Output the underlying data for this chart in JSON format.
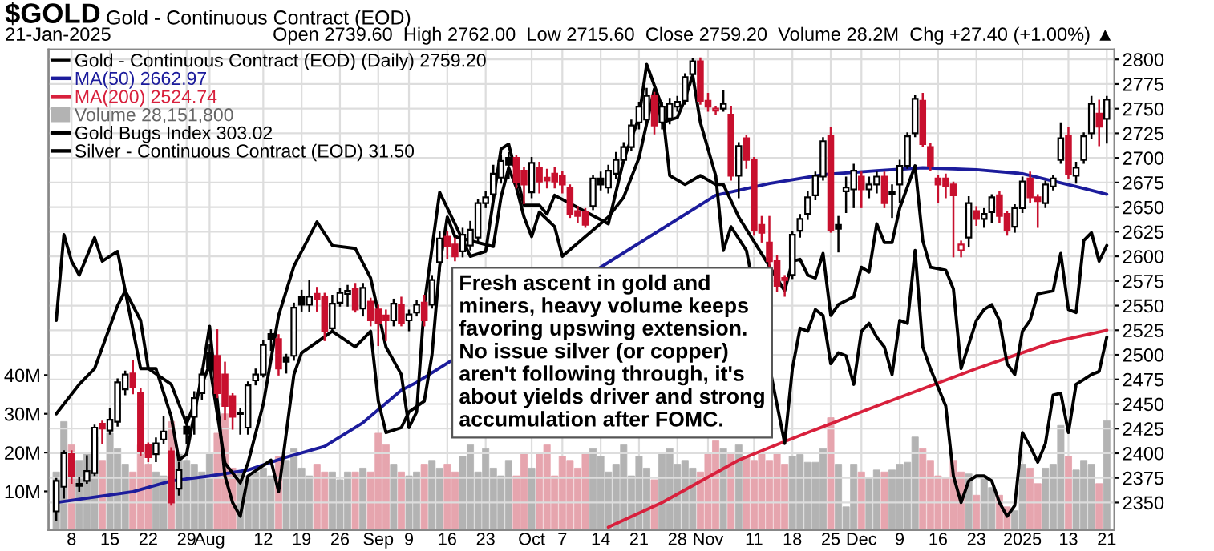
{
  "chart_data": {
    "type": "candlestick",
    "title": "$GOLD",
    "subtitle": "Gold - Continuous Contract (EOD)",
    "annotations": [
      "21-Jan-2025",
      "Open 2739.60  High 2762.00  Low 2715.60  Close 2759.20  Volume 28.2M  Chg +27.40 (+1.00%) ▲",
      "Fresh ascent in gold and\nminers, heavy volume keeps\nfavoring upswing extension.\nNo issue silver (or copper)\naren't following through, it's\nabout yields driver and strong\naccumulation after FOMC."
    ],
    "categories": [
      null,
      null,
      "8",
      null,
      null,
      null,
      null,
      "15",
      null,
      null,
      null,
      null,
      "22",
      null,
      null,
      null,
      null,
      "29",
      null,
      null,
      "Aug",
      null,
      null,
      null,
      null,
      null,
      null,
      "12",
      null,
      null,
      null,
      null,
      "19",
      null,
      null,
      null,
      null,
      "26",
      null,
      null,
      null,
      null,
      "Sep",
      null,
      null,
      null,
      "9",
      null,
      null,
      null,
      null,
      "16",
      null,
      null,
      null,
      null,
      "23",
      null,
      null,
      null,
      null,
      null,
      "Oct",
      null,
      null,
      null,
      "7",
      null,
      null,
      null,
      null,
      "14",
      null,
      null,
      null,
      null,
      "21",
      null,
      null,
      null,
      null,
      "28",
      null,
      null,
      null,
      "Nov",
      null,
      null,
      null,
      null,
      null,
      "11",
      null,
      null,
      null,
      null,
      "18",
      null,
      null,
      null,
      null,
      "25",
      null,
      null,
      null,
      "Dec",
      null,
      null,
      null,
      null,
      "9",
      null,
      null,
      null,
      null,
      "16",
      null,
      null,
      null,
      null,
      "23",
      null,
      null,
      null,
      null,
      null,
      "2025",
      null,
      null,
      null,
      null,
      null,
      "13",
      null,
      null,
      null,
      null,
      "21"
    ],
    "ylim": [
      2322,
      2810
    ],
    "yticks": [
      2350,
      2375,
      2400,
      2425,
      2450,
      2475,
      2500,
      2525,
      2550,
      2575,
      2600,
      2625,
      2650,
      2675,
      2700,
      2725,
      2750,
      2775,
      2800
    ],
    "y2lim": [
      0,
      124
    ],
    "y2ticks": [
      {
        "value": 10,
        "label": "10M"
      },
      {
        "value": 20,
        "label": "20M"
      },
      {
        "value": 30,
        "label": "30M"
      },
      {
        "value": 40,
        "label": "40M"
      }
    ],
    "grid": true,
    "legend": "top left",
    "series": [
      {
        "name": "Gold - Continuous Contract (EOD) (Daily) 2759.20",
        "color": "#000000",
        "ohlc": [
          [
            2341,
            2374,
            2332,
            2372
          ],
          [
            2366,
            2402,
            2355,
            2400
          ],
          [
            2399,
            2402,
            2370,
            2377
          ],
          [
            2369,
            2375,
            2362,
            2367
          ],
          [
            2372,
            2397,
            2370,
            2382
          ],
          [
            2380,
            2428,
            2378,
            2426
          ],
          [
            2430,
            2432,
            2410,
            2425
          ],
          [
            2423,
            2445,
            2420,
            2434
          ],
          [
            2432,
            2475,
            2428,
            2472
          ],
          [
            2465,
            2483,
            2460,
            2480
          ],
          [
            2481,
            2494,
            2461,
            2467
          ],
          [
            2461,
            2465,
            2398,
            2402
          ],
          [
            2408,
            2410,
            2392,
            2396
          ],
          [
            2399,
            2415,
            2392,
            2410
          ],
          [
            2414,
            2437,
            2410,
            2422
          ],
          [
            2402,
            2405,
            2348,
            2350
          ],
          [
            2364,
            2390,
            2358,
            2383
          ],
          [
            2427,
            2437,
            2410,
            2420
          ],
          [
            2437,
            2462,
            2420,
            2456
          ],
          [
            2461,
            2485,
            2455,
            2480
          ],
          [
            2502,
            2510,
            2485,
            2488
          ],
          [
            2499,
            2525,
            2457,
            2461
          ],
          [
            2480,
            2492,
            2435,
            2448
          ],
          [
            2458,
            2460,
            2425,
            2437
          ],
          [
            2441,
            2445,
            2420,
            2440
          ],
          [
            2426,
            2472,
            2420,
            2469
          ],
          [
            2474,
            2485,
            2470,
            2480
          ],
          [
            2480,
            2514,
            2478,
            2510
          ],
          [
            2521,
            2525,
            2505,
            2516
          ],
          [
            2516,
            2520,
            2480,
            2486
          ],
          [
            2497,
            2500,
            2482,
            2493
          ],
          [
            2499,
            2552,
            2495,
            2548
          ],
          [
            2559,
            2565,
            2545,
            2551
          ],
          [
            2551,
            2575,
            2545,
            2559
          ],
          [
            2562,
            2568,
            2545,
            2557
          ],
          [
            2559,
            2562,
            2515,
            2524
          ],
          [
            2527,
            2560,
            2525,
            2552
          ],
          [
            2553,
            2567,
            2550,
            2563
          ],
          [
            2562,
            2570,
            2550,
            2565
          ],
          [
            2567,
            2572,
            2544,
            2546
          ],
          [
            2547,
            2572,
            2540,
            2568
          ],
          [
            2554,
            2557,
            2530,
            2535
          ],
          [
            2546,
            2550,
            2510,
            2532
          ],
          [
            2540,
            2545,
            2515,
            2535
          ],
          [
            2535,
            2556,
            2530,
            2552
          ],
          [
            2551,
            2558,
            2530,
            2532
          ],
          [
            2535,
            2545,
            2525,
            2541
          ],
          [
            2543,
            2555,
            2540,
            2551
          ],
          [
            2553,
            2560,
            2530,
            2535
          ],
          [
            2551,
            2580,
            2548,
            2576
          ],
          [
            2594,
            2625,
            2585,
            2618
          ],
          [
            2620,
            2625,
            2598,
            2610
          ],
          [
            2612,
            2618,
            2596,
            2600
          ],
          [
            2605,
            2628,
            2600,
            2622
          ],
          [
            2611,
            2635,
            2607,
            2627
          ],
          [
            2619,
            2657,
            2615,
            2654
          ],
          [
            2654,
            2665,
            2650,
            2660
          ],
          [
            2663,
            2692,
            2660,
            2684
          ],
          [
            2680,
            2702,
            2675,
            2697
          ],
          [
            2700,
            2705,
            2680,
            2693
          ],
          [
            2700,
            2702,
            2670,
            2675
          ],
          [
            2687,
            2690,
            2654,
            2673
          ],
          [
            2665,
            2700,
            2660,
            2695
          ],
          [
            2690,
            2695,
            2665,
            2676
          ],
          [
            2680,
            2688,
            2670,
            2677
          ],
          [
            2684,
            2690,
            2670,
            2676
          ],
          [
            2682,
            2686,
            2665,
            2673
          ],
          [
            2670,
            2672,
            2640,
            2643
          ],
          [
            2646,
            2650,
            2635,
            2641
          ],
          [
            2645,
            2648,
            2630,
            2632
          ],
          [
            2651,
            2682,
            2648,
            2679
          ],
          [
            2679,
            2685,
            2668,
            2673
          ],
          [
            2670,
            2692,
            2665,
            2687
          ],
          [
            2684,
            2705,
            2680,
            2698
          ],
          [
            2698,
            2715,
            2695,
            2711
          ],
          [
            2711,
            2738,
            2708,
            2733
          ],
          [
            2736,
            2756,
            2730,
            2752
          ],
          [
            2739,
            2770,
            2735,
            2763
          ],
          [
            2763,
            2766,
            2725,
            2733
          ],
          [
            2736,
            2756,
            2730,
            2752
          ],
          [
            2740,
            2760,
            2735,
            2755
          ],
          [
            2752,
            2762,
            2748,
            2757
          ],
          [
            2758,
            2785,
            2755,
            2782
          ],
          [
            2785,
            2800,
            2780,
            2798
          ],
          [
            2798,
            2801,
            2755,
            2758
          ],
          [
            2758,
            2765,
            2748,
            2752
          ],
          [
            2748,
            2752,
            2745,
            2750
          ],
          [
            2750,
            2768,
            2748,
            2755
          ],
          [
            2744,
            2752,
            2678,
            2682
          ],
          [
            2682,
            2715,
            2660,
            2712
          ],
          [
            2720,
            2722,
            2690,
            2698
          ],
          [
            2698,
            2700,
            2622,
            2627
          ],
          [
            2632,
            2640,
            2615,
            2624
          ],
          [
            2614,
            2640,
            2590,
            2595
          ],
          [
            2595,
            2600,
            2565,
            2570
          ],
          [
            2578,
            2580,
            2560,
            2576
          ],
          [
            2581,
            2625,
            2578,
            2622
          ],
          [
            2626,
            2642,
            2620,
            2638
          ],
          [
            2643,
            2665,
            2638,
            2660
          ],
          [
            2662,
            2685,
            2658,
            2682
          ],
          [
            2681,
            2720,
            2678,
            2717
          ],
          [
            2722,
            2730,
            2625,
            2627
          ],
          [
            2632,
            2640,
            2605,
            2628
          ],
          [
            2666,
            2680,
            2645,
            2670
          ],
          [
            2668,
            2693,
            2650,
            2687
          ],
          [
            2681,
            2685,
            2650,
            2668
          ],
          [
            2668,
            2680,
            2660,
            2673
          ],
          [
            2673,
            2685,
            2665,
            2681
          ],
          [
            2681,
            2685,
            2650,
            2654
          ],
          [
            2665,
            2672,
            2640,
            2663
          ],
          [
            2673,
            2697,
            2655,
            2692
          ],
          [
            2692,
            2725,
            2690,
            2722
          ],
          [
            2725,
            2763,
            2722,
            2760
          ],
          [
            2758,
            2765,
            2712,
            2714
          ],
          [
            2711,
            2714,
            2688,
            2692
          ],
          [
            2679,
            2682,
            2655,
            2673
          ],
          [
            2679,
            2683,
            2660,
            2671
          ],
          [
            2673,
            2675,
            2600,
            2662
          ],
          [
            2606,
            2615,
            2600,
            2612
          ],
          [
            2619,
            2660,
            2610,
            2654
          ],
          [
            2646,
            2650,
            2632,
            2638
          ],
          [
            2638,
            2648,
            2630,
            2643
          ],
          [
            2645,
            2662,
            2635,
            2660
          ],
          [
            2662,
            2665,
            2635,
            2641
          ],
          [
            2643,
            2645,
            2622,
            2627
          ],
          [
            2630,
            2652,
            2625,
            2649
          ],
          [
            2649,
            2680,
            2645,
            2676
          ],
          [
            2679,
            2685,
            2655,
            2660
          ],
          [
            2660,
            2662,
            2630,
            2656
          ],
          [
            2654,
            2676,
            2650,
            2673
          ],
          [
            2671,
            2682,
            2668,
            2679
          ],
          [
            2698,
            2735,
            2695,
            2720
          ],
          [
            2722,
            2730,
            2680,
            2684
          ],
          [
            2682,
            2695,
            2675,
            2690
          ],
          [
            2698,
            2725,
            2695,
            2722
          ],
          [
            2725,
            2762,
            2720,
            2755
          ],
          [
            2745,
            2758,
            2713,
            2731.8
          ],
          [
            2739.6,
            2762,
            2715.6,
            2759.2
          ]
        ],
        "colors": [
          "#000000",
          "#000000",
          "#c8102e",
          "#000000",
          "#000000",
          "#000000",
          "#c8102e",
          "#000000",
          "#000000",
          "#000000",
          "#c8102e",
          "#c8102e",
          "#c8102e",
          "#000000",
          "#000000",
          "#c8102e",
          "#000000",
          "#000000",
          "#000000",
          "#000000",
          "#000000",
          "#c8102e",
          "#c8102e",
          "#c8102e",
          "#000000",
          "#000000",
          "#000000",
          "#000000",
          "#000000",
          "#c8102e",
          "#000000",
          "#000000",
          "#000000",
          "#000000",
          "#c8102e",
          "#c8102e",
          "#000000",
          "#000000",
          "#000000",
          "#c8102e",
          "#000000",
          "#c8102e",
          "#c8102e",
          "#c8102e",
          "#000000",
          "#c8102e",
          "#000000",
          "#000000",
          "#c8102e",
          "#000000",
          "#000000",
          "#c8102e",
          "#c8102e",
          "#000000",
          "#000000",
          "#000000",
          "#000000",
          "#000000",
          "#000000",
          "#000000",
          "#c8102e",
          "#c8102e",
          "#000000",
          "#c8102e",
          "#c8102e",
          "#c8102e",
          "#c8102e",
          "#c8102e",
          "#c8102e",
          "#c8102e",
          "#000000",
          "#000000",
          "#000000",
          "#000000",
          "#000000",
          "#000000",
          "#000000",
          "#000000",
          "#c8102e",
          "#000000",
          "#000000",
          "#000000",
          "#000000",
          "#000000",
          "#c8102e",
          "#c8102e",
          "#c8102e",
          "#000000",
          "#c8102e",
          "#000000",
          "#c8102e",
          "#c8102e",
          "#c8102e",
          "#c8102e",
          "#c8102e",
          "#c8102e",
          "#000000",
          "#000000",
          "#000000",
          "#000000",
          "#000000",
          "#c8102e",
          "#000000",
          "#000000",
          "#000000",
          "#c8102e",
          "#000000",
          "#000000",
          "#c8102e",
          "#000000",
          "#000000",
          "#000000",
          "#000000",
          "#c8102e",
          "#c8102e",
          "#c8102e",
          "#c8102e",
          "#c8102e",
          "#c8102e",
          "#000000",
          "#c8102e",
          "#000000",
          "#000000",
          "#c8102e",
          "#c8102e",
          "#000000",
          "#000000",
          "#c8102e",
          "#c8102e",
          "#000000",
          "#000000",
          "#000000",
          "#c8102e",
          "#000000",
          "#000000",
          "#000000",
          "#c8102e",
          "#000000"
        ]
      },
      {
        "type": "line",
        "name": "MA(50) 2662.97",
        "color": "#1c1c9c",
        "values": [
          2350,
          null,
          null,
          null,
          null,
          null,
          null,
          null,
          null,
          null,
          2361,
          null,
          null,
          null,
          null,
          2372,
          null,
          null,
          null,
          null,
          2377,
          null,
          null,
          null,
          null,
          2383,
          null,
          null,
          null,
          null,
          2396,
          null,
          null,
          null,
          null,
          2407,
          null,
          null,
          null,
          null,
          2431,
          null,
          null,
          null,
          null,
          2464,
          null,
          2472,
          null,
          null,
          null,
          null,
          null,
          null,
          null,
          null,
          null,
          null,
          null,
          null,
          null,
          null,
          null,
          null,
          null,
          null,
          null,
          null,
          null,
          null,
          null,
          null,
          null,
          null,
          null,
          null,
          null,
          null,
          null,
          null,
          null,
          null,
          null,
          null,
          null,
          null,
          2662,
          null,
          null,
          null,
          null,
          null,
          null,
          2674,
          null,
          null,
          null,
          null,
          null,
          null,
          2683,
          null,
          null,
          null,
          null,
          null,
          null,
          2687,
          null,
          null,
          null,
          null,
          null,
          2690,
          null,
          null,
          null,
          null,
          null,
          null,
          2688,
          null,
          null,
          null,
          null,
          null,
          2684,
          null,
          null,
          null,
          null,
          null,
          null,
          2671,
          null,
          null,
          null,
          2663
        ]
      },
      {
        "type": "line",
        "name": "MA(200) 2524.74",
        "color": "#d8203c",
        "values": [
          null,
          null,
          null,
          null,
          null,
          null,
          null,
          null,
          null,
          null,
          null,
          null,
          null,
          null,
          null,
          null,
          null,
          null,
          null,
          null,
          null,
          null,
          null,
          null,
          null,
          null,
          null,
          null,
          null,
          null,
          null,
          null,
          null,
          null,
          null,
          null,
          null,
          null,
          null,
          null,
          null,
          null,
          null,
          null,
          null,
          null,
          null,
          null,
          null,
          null,
          null,
          null,
          null,
          null,
          null,
          null,
          null,
          null,
          null,
          null,
          null,
          null,
          null,
          null,
          null,
          null,
          null,
          null,
          null,
          null,
          null,
          null,
          2325,
          null,
          null,
          null,
          null,
          null,
          null,
          2350,
          null,
          null,
          null,
          null,
          null,
          null,
          null,
          null,
          null,
          2393,
          null,
          null,
          null,
          null,
          null,
          2412,
          null,
          null,
          null,
          null,
          null,
          null,
          null,
          null,
          null,
          null,
          null,
          2448,
          null,
          null,
          null,
          null,
          null,
          null,
          null,
          null,
          null,
          null,
          null,
          null,
          2486,
          null,
          null,
          null,
          null,
          null,
          null,
          null,
          null,
          null,
          2513,
          null,
          null,
          null,
          null,
          null,
          null,
          2525
        ]
      },
      {
        "type": "bar",
        "axis": "y2",
        "name": "Volume 28,151,800",
        "color": "#b3b3b3",
        "values": [
          15,
          28,
          22,
          18,
          20,
          24,
          18,
          25,
          21,
          17,
          15,
          22,
          17,
          15,
          14,
          28,
          20,
          18,
          17,
          15,
          20,
          25,
          30,
          16,
          15,
          14,
          15,
          16,
          14,
          19,
          18,
          21,
          16,
          14,
          17,
          15,
          15,
          13,
          15,
          15,
          16,
          15,
          25,
          22,
          17,
          15,
          14,
          15,
          17,
          18,
          16,
          17,
          15,
          19,
          22,
          15,
          21,
          16,
          14,
          18,
          14,
          20,
          16,
          20,
          22,
          14,
          19,
          18,
          16,
          20,
          21,
          19,
          15,
          17,
          22,
          14,
          19,
          16,
          13,
          20,
          21,
          17,
          18,
          16,
          15,
          20,
          23,
          21,
          20,
          22,
          19,
          18,
          20,
          18,
          20,
          17,
          19,
          19.5,
          17.5,
          17.5,
          21,
          29,
          17,
          6,
          17,
          15,
          13.5,
          15.5,
          15,
          15.5,
          17,
          17.5,
          24,
          21,
          18,
          14,
          13.5,
          18,
          15,
          14.5,
          9,
          14,
          11,
          9,
          6,
          5,
          17,
          16,
          12,
          16,
          17,
          27,
          19,
          15.5,
          18,
          17,
          12,
          28.2
        ],
        "colors": [
          "#b3b3b3",
          "#b3b3b3",
          "#e6a5ae",
          "#b3b3b3",
          "#b3b3b3",
          "#b3b3b3",
          "#e6a5ae",
          "#b3b3b3",
          "#b3b3b3",
          "#b3b3b3",
          "#e6a5ae",
          "#e6a5ae",
          "#e6a5ae",
          "#b3b3b3",
          "#b3b3b3",
          "#e6a5ae",
          "#b3b3b3",
          "#b3b3b3",
          "#b3b3b3",
          "#b3b3b3",
          "#b3b3b3",
          "#e6a5ae",
          "#e6a5ae",
          "#e6a5ae",
          "#b3b3b3",
          "#b3b3b3",
          "#b3b3b3",
          "#b3b3b3",
          "#b3b3b3",
          "#e6a5ae",
          "#b3b3b3",
          "#b3b3b3",
          "#b3b3b3",
          "#b3b3b3",
          "#e6a5ae",
          "#e6a5ae",
          "#b3b3b3",
          "#b3b3b3",
          "#b3b3b3",
          "#e6a5ae",
          "#b3b3b3",
          "#e6a5ae",
          "#e6a5ae",
          "#e6a5ae",
          "#b3b3b3",
          "#e6a5ae",
          "#b3b3b3",
          "#b3b3b3",
          "#e6a5ae",
          "#b3b3b3",
          "#b3b3b3",
          "#e6a5ae",
          "#e6a5ae",
          "#b3b3b3",
          "#b3b3b3",
          "#b3b3b3",
          "#b3b3b3",
          "#b3b3b3",
          "#b3b3b3",
          "#b3b3b3",
          "#e6a5ae",
          "#e6a5ae",
          "#b3b3b3",
          "#e6a5ae",
          "#e6a5ae",
          "#e6a5ae",
          "#e6a5ae",
          "#e6a5ae",
          "#e6a5ae",
          "#e6a5ae",
          "#b3b3b3",
          "#b3b3b3",
          "#b3b3b3",
          "#b3b3b3",
          "#b3b3b3",
          "#b3b3b3",
          "#b3b3b3",
          "#b3b3b3",
          "#e6a5ae",
          "#b3b3b3",
          "#b3b3b3",
          "#b3b3b3",
          "#b3b3b3",
          "#b3b3b3",
          "#e6a5ae",
          "#e6a5ae",
          "#e6a5ae",
          "#b3b3b3",
          "#e6a5ae",
          "#b3b3b3",
          "#e6a5ae",
          "#e6a5ae",
          "#e6a5ae",
          "#e6a5ae",
          "#e6a5ae",
          "#e6a5ae",
          "#b3b3b3",
          "#b3b3b3",
          "#b3b3b3",
          "#b3b3b3",
          "#b3b3b3",
          "#e6a5ae",
          "#b3b3b3",
          "#b3b3b3",
          "#b3b3b3",
          "#e6a5ae",
          "#b3b3b3",
          "#b3b3b3",
          "#e6a5ae",
          "#b3b3b3",
          "#b3b3b3",
          "#b3b3b3",
          "#b3b3b3",
          "#e6a5ae",
          "#e6a5ae",
          "#e6a5ae",
          "#e6a5ae",
          "#e6a5ae",
          "#e6a5ae",
          "#b3b3b3",
          "#e6a5ae",
          "#b3b3b3",
          "#b3b3b3",
          "#e6a5ae",
          "#e6a5ae",
          "#b3b3b3",
          "#b3b3b3",
          "#e6a5ae",
          "#e6a5ae",
          "#b3b3b3",
          "#b3b3b3",
          "#b3b3b3",
          "#e6a5ae",
          "#b3b3b3",
          "#b3b3b3",
          "#b3b3b3",
          "#e6a5ae",
          "#b3b3b3"
        ]
      },
      {
        "type": "line",
        "name": "Gold Bugs Index 303.02",
        "color": "#000000",
        "values": [
          2440,
          null,
          null,
          2470,
          null,
          2486,
          null,
          null,
          2550,
          2565,
          null,
          2535,
          2486,
          null,
          null,
          2470,
          null,
          2430,
          null,
          2470,
          2490,
          2440,
          2390,
          null,
          2370,
          2390,
          null,
          2450,
          null,
          2540,
          null,
          2590,
          null,
          null,
          2635,
          null,
          2611,
          null,
          null,
          2608,
          null,
          2578,
          null,
          2508,
          null,
          2480,
          2426,
          2442,
          2551,
          null,
          2665,
          null,
          2633,
          null,
          2600,
          null,
          2605,
          null,
          2709,
          2714,
          null,
          2652,
          null,
          2652,
          2643,
          2662,
          null,
          null,
          null,
          null,
          null,
          null,
          2633,
          null,
          2698,
          null,
          2741,
          2795,
          null,
          2752,
          2682,
          null,
          2673,
          null,
          2682,
          null,
          2673,
          2673,
          null,
          2640,
          null,
          null,
          null,
          null,
          null,
          2565,
          2595,
          2597,
          2581,
          2578,
          2603,
          2540,
          2551,
          null,
          2559,
          2589,
          2584,
          2633,
          2614,
          2614,
          2649,
          null,
          2692,
          2616,
          2589,
          null,
          2586,
          2567,
          2486,
          null,
          2535,
          2546,
          2551,
          2535,
          2491,
          2480,
          2524,
          2535,
          2562,
          null,
          2565,
          2603,
          2546,
          2543,
          2616,
          2624,
          2595,
          2611
        ]
      },
      {
        "type": "line",
        "name": "Silver - Continuous Contract (EOD) 31.50",
        "color": "#000000",
        "values": [
          2535,
          2622,
          2595,
          2581,
          null,
          2619,
          2595,
          null,
          2605,
          2565,
          null,
          2486,
          null,
          2486,
          null,
          2437,
          2393,
          2399,
          null,
          2480,
          2529,
          2453,
          2377,
          2350,
          2336,
          2377,
          null,
          null,
          2393,
          2361,
          null,
          2480,
          2502,
          null,
          2513,
          null,
          2524,
          null,
          null,
          2508,
          null,
          2524,
          2453,
          2421,
          null,
          2426,
          2442,
          null,
          2453,
          2500,
          2590,
          2640,
          2620,
          null,
          null,
          null,
          null,
          2610,
          2660,
          2690,
          2670,
          2640,
          2620,
          2645,
          null,
          2630,
          2600,
          null,
          null,
          null,
          null,
          null,
          2640,
          null,
          2660,
          null,
          2700,
          null,
          2770,
          2736,
          null,
          2741,
          2760,
          2784,
          2736,
          null,
          2682,
          2606,
          2630,
          null,
          2606,
          null,
          null,
          null,
          null,
          2410,
          2486,
          2527,
          2524,
          2546,
          2540,
          2491,
          2502,
          2499,
          2470,
          2524,
          2532,
          2518,
          2508,
          2480,
          2535,
          2532,
          2606,
          2508,
          2486,
          null,
          2448,
          2377,
          2350,
          2372,
          2377,
          2377,
          2372,
          2350,
          2336,
          2347,
          2421,
          2407,
          2391,
          2410,
          2459,
          2461,
          2421,
          2470,
          2475,
          2480,
          2483,
          2518
        ]
      }
    ]
  }
}
